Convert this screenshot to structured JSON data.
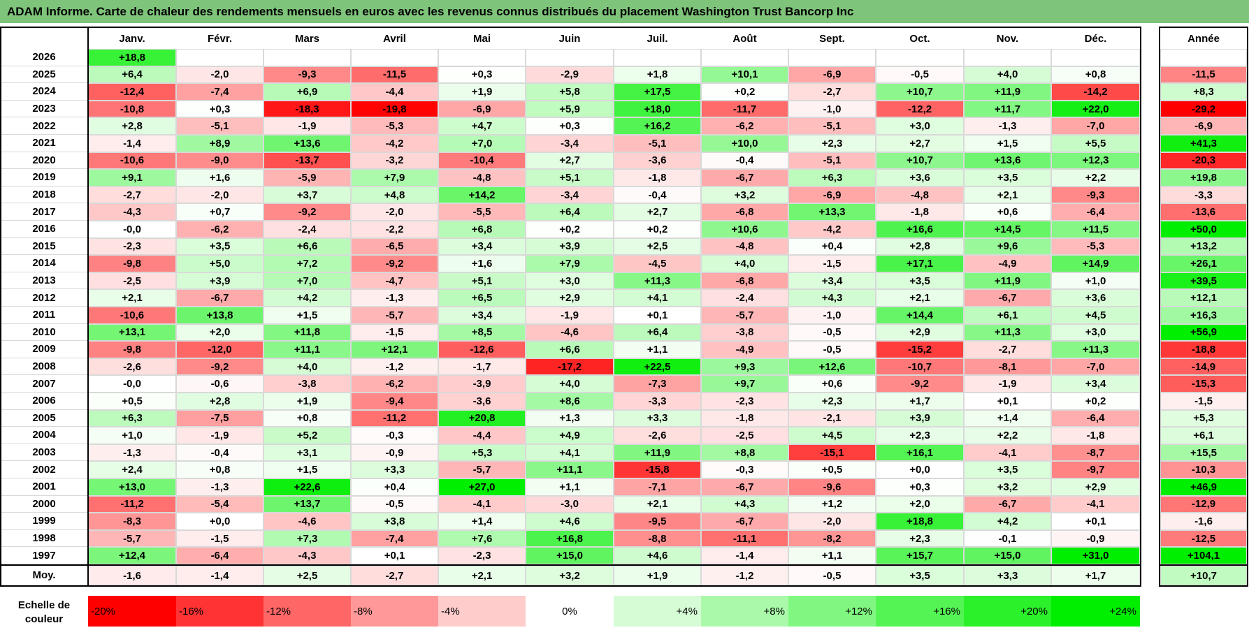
{
  "title": "ADAM Informe. Carte de chaleur des rendements mensuels en euros avec les revenus connus distribués du placement Washington Trust Bancorp Inc",
  "chart_data": {
    "type": "heatmap",
    "title": "ADAM Informe. Carte de chaleur des rendements mensuels en euros avec les revenus connus distribués du placement Washington Trust Bancorp Inc",
    "months": [
      "Janv.",
      "Févr.",
      "Mars",
      "Avril",
      "Mai",
      "Juin",
      "Juil.",
      "Août",
      "Sept.",
      "Oct.",
      "Nov.",
      "Déc."
    ],
    "year_header": "Année",
    "rows": [
      {
        "year": "2026",
        "values": [
          "+18,8",
          null,
          null,
          null,
          null,
          null,
          null,
          null,
          null,
          null,
          null,
          null
        ],
        "annual": null
      },
      {
        "year": "2025",
        "values": [
          "+6,4",
          "-2,0",
          "-9,3",
          "-11,5",
          "+0,3",
          "-2,9",
          "+1,8",
          "+10,1",
          "-6,9",
          "-0,5",
          "+4,0",
          "+0,8"
        ],
        "annual": "-11,5"
      },
      {
        "year": "2024",
        "values": [
          "-12,4",
          "-7,4",
          "+6,9",
          "-4,4",
          "+1,9",
          "+5,8",
          "+17,5",
          "+0,2",
          "-2,7",
          "+10,7",
          "+11,9",
          "-14,2"
        ],
        "annual": "+8,3"
      },
      {
        "year": "2023",
        "values": [
          "-10,8",
          "+0,3",
          "-18,3",
          "-19,8",
          "-6,9",
          "+5,9",
          "+18,0",
          "-11,7",
          "-1,0",
          "-12,2",
          "+11,7",
          "+22,0"
        ],
        "annual": "-29,2"
      },
      {
        "year": "2022",
        "values": [
          "+2,8",
          "-5,1",
          "-1,9",
          "-5,3",
          "+4,7",
          "+0,3",
          "+16,2",
          "-6,2",
          "-5,1",
          "+3,0",
          "-1,3",
          "-7,0"
        ],
        "annual": "-6,9"
      },
      {
        "year": "2021",
        "values": [
          "-1,4",
          "+8,9",
          "+13,6",
          "-4,2",
          "+7,0",
          "-3,4",
          "-5,1",
          "+10,0",
          "+2,3",
          "+2,7",
          "+1,5",
          "+5,5"
        ],
        "annual": "+41,3"
      },
      {
        "year": "2020",
        "values": [
          "-10,6",
          "-9,0",
          "-13,7",
          "-3,2",
          "-10,4",
          "+2,7",
          "-3,6",
          "-0,4",
          "-5,1",
          "+10,7",
          "+13,6",
          "+12,3"
        ],
        "annual": "-20,3"
      },
      {
        "year": "2019",
        "values": [
          "+9,1",
          "+1,6",
          "-5,9",
          "+7,9",
          "-4,8",
          "+5,1",
          "-1,8",
          "-6,7",
          "+6,3",
          "+3,6",
          "+3,5",
          "+2,2"
        ],
        "annual": "+19,8"
      },
      {
        "year": "2018",
        "values": [
          "-2,7",
          "-2,0",
          "+3,7",
          "+4,8",
          "+14,2",
          "-3,4",
          "-0,4",
          "+3,2",
          "-6,9",
          "-4,8",
          "+2,1",
          "-9,3"
        ],
        "annual": "-3,3"
      },
      {
        "year": "2017",
        "values": [
          "-4,3",
          "+0,7",
          "-9,2",
          "-2,0",
          "-5,5",
          "+6,4",
          "+2,7",
          "-6,8",
          "+13,3",
          "-1,8",
          "+0,6",
          "-6,4"
        ],
        "annual": "-13,6"
      },
      {
        "year": "2016",
        "values": [
          "-0,0",
          "-6,2",
          "-2,4",
          "-2,2",
          "+6,8",
          "+0,2",
          "+0,2",
          "+10,6",
          "-4,2",
          "+16,6",
          "+14,5",
          "+11,5"
        ],
        "annual": "+50,0"
      },
      {
        "year": "2015",
        "values": [
          "-2,3",
          "+3,5",
          "+6,6",
          "-6,5",
          "+3,4",
          "+3,9",
          "+2,5",
          "-4,8",
          "+0,4",
          "+2,8",
          "+9,6",
          "-5,3"
        ],
        "annual": "+13,2"
      },
      {
        "year": "2014",
        "values": [
          "-9,8",
          "+5,0",
          "+7,2",
          "-9,2",
          "+1,6",
          "+7,9",
          "-4,5",
          "+4,0",
          "-1,5",
          "+17,1",
          "-4,9",
          "+14,9"
        ],
        "annual": "+26,1"
      },
      {
        "year": "2013",
        "values": [
          "-2,5",
          "+3,9",
          "+7,0",
          "-4,7",
          "+5,1",
          "+3,0",
          "+11,3",
          "-6,8",
          "+3,4",
          "+3,5",
          "+11,9",
          "+1,0"
        ],
        "annual": "+39,5"
      },
      {
        "year": "2012",
        "values": [
          "+2,1",
          "-6,7",
          "+4,2",
          "-1,3",
          "+6,5",
          "+2,9",
          "+4,1",
          "-2,4",
          "+4,3",
          "+2,1",
          "-6,7",
          "+3,6"
        ],
        "annual": "+12,1"
      },
      {
        "year": "2011",
        "values": [
          "-10,6",
          "+13,8",
          "+1,5",
          "-5,7",
          "+3,4",
          "-1,9",
          "+0,1",
          "-5,7",
          "-1,0",
          "+14,4",
          "+6,1",
          "+4,5"
        ],
        "annual": "+16,3"
      },
      {
        "year": "2010",
        "values": [
          "+13,1",
          "+2,0",
          "+11,8",
          "-1,5",
          "+8,5",
          "-4,6",
          "+6,4",
          "-3,8",
          "-0,5",
          "+2,9",
          "+11,3",
          "+3,0"
        ],
        "annual": "+56,9"
      },
      {
        "year": "2009",
        "values": [
          "-9,8",
          "-12,0",
          "+11,1",
          "+12,1",
          "-12,6",
          "+6,6",
          "+1,1",
          "-4,9",
          "-0,5",
          "-15,2",
          "-2,7",
          "+11,3"
        ],
        "annual": "-18,8"
      },
      {
        "year": "2008",
        "values": [
          "-2,6",
          "-9,2",
          "+4,0",
          "-1,2",
          "-1,7",
          "-17,2",
          "+22,5",
          "+9,3",
          "+12,6",
          "-10,7",
          "-8,1",
          "-7,0"
        ],
        "annual": "-14,9"
      },
      {
        "year": "2007",
        "values": [
          "-0,0",
          "-0,6",
          "-3,8",
          "-6,2",
          "-3,9",
          "+4,0",
          "-7,3",
          "+9,7",
          "+0,6",
          "-9,2",
          "-1,9",
          "+3,4"
        ],
        "annual": "-15,3"
      },
      {
        "year": "2006",
        "values": [
          "+0,5",
          "+2,8",
          "+1,9",
          "-9,4",
          "-3,6",
          "+8,6",
          "-3,3",
          "-2,3",
          "+2,3",
          "+1,7",
          "+0,1",
          "+0,2"
        ],
        "annual": "-1,5"
      },
      {
        "year": "2005",
        "values": [
          "+6,3",
          "-7,5",
          "+0,8",
          "-11,2",
          "+20,8",
          "+1,3",
          "+3,3",
          "-1,8",
          "-2,1",
          "+3,9",
          "+1,4",
          "-6,4"
        ],
        "annual": "+5,3"
      },
      {
        "year": "2004",
        "values": [
          "+1,0",
          "-1,9",
          "+5,2",
          "-0,3",
          "-4,4",
          "+4,9",
          "-2,6",
          "-2,5",
          "+4,5",
          "+2,3",
          "+2,2",
          "-1,8"
        ],
        "annual": "+6,1"
      },
      {
        "year": "2003",
        "values": [
          "-1,3",
          "-0,4",
          "+3,1",
          "-0,9",
          "+5,3",
          "+4,1",
          "+11,9",
          "+8,8",
          "-15,1",
          "+16,1",
          "-4,1",
          "-8,7"
        ],
        "annual": "+15,5"
      },
      {
        "year": "2002",
        "values": [
          "+2,4",
          "+0,8",
          "+1,5",
          "+3,3",
          "-5,7",
          "+11,1",
          "-15,8",
          "-0,3",
          "+0,5",
          "+0,0",
          "+3,5",
          "-9,7"
        ],
        "annual": "-10,3"
      },
      {
        "year": "2001",
        "values": [
          "+13,0",
          "-1,3",
          "+22,6",
          "+0,4",
          "+27,0",
          "+1,1",
          "-7,1",
          "-6,7",
          "-9,6",
          "+0,3",
          "+3,2",
          "+2,9"
        ],
        "annual": "+46,9"
      },
      {
        "year": "2000",
        "values": [
          "-11,2",
          "-5,4",
          "+13,7",
          "-0,5",
          "-4,1",
          "-3,0",
          "+2,1",
          "+4,3",
          "+1,2",
          "+2,0",
          "-6,7",
          "-4,1"
        ],
        "annual": "-12,9"
      },
      {
        "year": "1999",
        "values": [
          "-8,3",
          "+0,0",
          "-4,6",
          "+3,8",
          "+1,4",
          "+4,6",
          "-9,5",
          "-6,7",
          "-2,0",
          "+18,8",
          "+4,2",
          "+0,1"
        ],
        "annual": "-1,6"
      },
      {
        "year": "1998",
        "values": [
          "-5,7",
          "-1,5",
          "+7,3",
          "-7,4",
          "+7,6",
          "+16,8",
          "-8,8",
          "-11,1",
          "-8,2",
          "+2,3",
          "-0,1",
          "-0,9"
        ],
        "annual": "-12,5"
      },
      {
        "year": "1997",
        "values": [
          "+12,4",
          "-6,4",
          "-4,3",
          "+0,1",
          "-2,3",
          "+15,0",
          "+4,6",
          "-1,4",
          "+1,1",
          "+15,7",
          "+15,0",
          "+31,0"
        ],
        "annual": "+104,1"
      }
    ],
    "average": {
      "label": "Moy.",
      "values": [
        "-1,6",
        "-1,4",
        "+2,5",
        "-2,7",
        "+2,1",
        "+3,2",
        "+1,9",
        "-1,2",
        "-0,5",
        "+3,5",
        "+3,3",
        "+1,7"
      ],
      "annual": "+10,7"
    },
    "scale": {
      "label": "Echelle de couleur",
      "stops": [
        "-20%",
        "-16%",
        "-12%",
        "-8%",
        "-4%",
        "0%",
        "+4%",
        "+8%",
        "+12%",
        "+16%",
        "+20%",
        "+24%"
      ]
    }
  },
  "colors": {
    "title_bg": "#7ec47a",
    "negative_max": "#ff0000",
    "positive_max": "#00ee00",
    "neutral": "#ffffff"
  }
}
